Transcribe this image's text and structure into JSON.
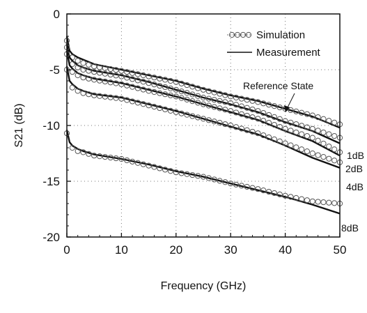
{
  "chart_data": {
    "type": "line",
    "title": "",
    "xlabel": "Frequency (GHz)",
    "ylabel": "S21 (dB)",
    "xlim": [
      0,
      50
    ],
    "ylim": [
      -20,
      0
    ],
    "xticks": [
      0,
      10,
      20,
      30,
      40,
      50
    ],
    "yticks": [
      0,
      -5,
      -10,
      -15,
      -20
    ],
    "xtick_labels": [
      "0",
      "10",
      "20",
      "30",
      "40",
      "50"
    ],
    "ytick_labels": [
      "0",
      "-5",
      "-10",
      "-15",
      "-20"
    ],
    "grid": "dotted",
    "legend": {
      "placement": "top-right",
      "entries": [
        {
          "label": "Simulation",
          "style": "circle-markers"
        },
        {
          "label": "Measurement",
          "style": "solid-line"
        }
      ]
    },
    "x": [
      0,
      0.5,
      1,
      2,
      3,
      5,
      10,
      15,
      20,
      25,
      30,
      35,
      40,
      45,
      50
    ],
    "series": [
      {
        "name": "Reference State",
        "simulation": [
          -2.4,
          -3.6,
          -3.9,
          -4.2,
          -4.4,
          -4.7,
          -5.1,
          -5.6,
          -6.1,
          -6.8,
          -7.4,
          -7.9,
          -8.5,
          -9.1,
          -9.9
        ],
        "measurement": [
          -2.0,
          -3.3,
          -3.6,
          -3.9,
          -4.1,
          -4.5,
          -5.0,
          -5.5,
          -6.0,
          -6.7,
          -7.3,
          -7.8,
          -8.5,
          -9.2,
          -10.2
        ]
      },
      {
        "name": "1dB",
        "simulation": [
          -3.0,
          -4.2,
          -4.5,
          -4.8,
          -5.0,
          -5.2,
          -5.6,
          -6.2,
          -6.8,
          -7.5,
          -8.0,
          -8.7,
          -9.6,
          -10.3,
          -11.1
        ],
        "measurement": [
          -2.7,
          -3.9,
          -4.2,
          -4.6,
          -4.8,
          -5.1,
          -5.5,
          -6.1,
          -6.8,
          -7.5,
          -8.1,
          -8.8,
          -9.7,
          -10.5,
          -11.6
        ]
      },
      {
        "name": "2dB",
        "simulation": [
          -3.6,
          -4.9,
          -5.2,
          -5.5,
          -5.7,
          -5.9,
          -6.3,
          -6.9,
          -7.4,
          -8.1,
          -8.7,
          -9.4,
          -10.3,
          -11.1,
          -12.4
        ],
        "measurement": [
          -3.3,
          -4.6,
          -4.9,
          -5.3,
          -5.5,
          -5.8,
          -6.2,
          -6.8,
          -7.4,
          -8.1,
          -8.8,
          -9.5,
          -10.5,
          -11.4,
          -12.7
        ]
      },
      {
        "name": "4dB",
        "simulation": [
          -5.0,
          -6.3,
          -6.6,
          -6.9,
          -7.1,
          -7.3,
          -7.6,
          -8.2,
          -8.8,
          -9.4,
          -10.0,
          -10.7,
          -11.6,
          -12.5,
          -13.3
        ],
        "measurement": [
          -4.7,
          -6.0,
          -6.3,
          -6.7,
          -6.9,
          -7.2,
          -7.5,
          -8.1,
          -8.7,
          -9.4,
          -10.1,
          -10.8,
          -11.8,
          -12.9,
          -13.8
        ]
      },
      {
        "name": "8dB",
        "simulation": [
          -10.7,
          -11.8,
          -12.0,
          -12.3,
          -12.4,
          -12.7,
          -13.0,
          -13.6,
          -14.2,
          -14.6,
          -15.2,
          -15.7,
          -16.3,
          -16.8,
          -17.0
        ],
        "measurement": [
          -10.4,
          -11.5,
          -11.8,
          -12.1,
          -12.3,
          -12.6,
          -13.0,
          -13.5,
          -14.1,
          -14.6,
          -15.2,
          -15.8,
          -16.4,
          -17.1,
          -17.9
        ]
      }
    ],
    "annotations": [
      "Reference State",
      "1dB",
      "2dB",
      "4dB",
      "8dB"
    ]
  }
}
